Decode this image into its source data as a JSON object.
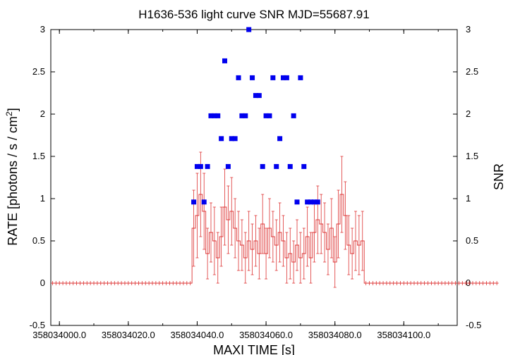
{
  "chart_data": {
    "type": "scatter",
    "title": "H1636-536 light curve  SNR MJD=55687.91",
    "xlabel": "MAXI TIME [s]",
    "ylabel_left": "RATE [photons / s / cm",
    "ylabel_left_sup": "2",
    "ylabel_left_end": "]",
    "ylabel_right": "SNR",
    "xlim": [
      358033997.5,
      358034115.5
    ],
    "ylim": [
      -0.5,
      3.0
    ],
    "x_ticks": [
      358034000.0,
      358034020.0,
      358034040.0,
      358034060.0,
      358034080.0,
      358034100.0
    ],
    "x_tick_labels": [
      "358034000.0",
      "358034020.0",
      "358034040.0",
      "358034060.0",
      "358034080.0",
      "358034100.0"
    ],
    "y_ticks": [
      -0.5,
      0,
      0.5,
      1,
      1.5,
      2,
      2.5,
      3
    ],
    "y_tick_labels": [
      "-0.5",
      "0",
      "0.5",
      "1",
      "1.5",
      "2",
      "2.5",
      "3"
    ],
    "series": [
      {
        "kind": "errorbar-step",
        "color": "#dd3333",
        "x_start": 358033998.0,
        "x_step": 1.0,
        "values": [
          0,
          0,
          0,
          0,
          0,
          0,
          0,
          0,
          0,
          0,
          0,
          0,
          0,
          0,
          0,
          0,
          0,
          0,
          0,
          0,
          0,
          0,
          0,
          0,
          0,
          0,
          0,
          0,
          0,
          0,
          0,
          0,
          0,
          0,
          0,
          0,
          0,
          0,
          0,
          0,
          0,
          0.65,
          0.8,
          1.05,
          0.85,
          0.35,
          0.6,
          0.5,
          0.3,
          0.55,
          0.9,
          0.75,
          0.85,
          0.65,
          0.5,
          0.45,
          0.3,
          0.5,
          0.4,
          0.5,
          0.35,
          0.7,
          0.35,
          0.65,
          0.55,
          0.45,
          0.6,
          0.5,
          0.3,
          0.35,
          0.25,
          0.45,
          0.3,
          0.35,
          0.55,
          0.3,
          0.6,
          0.75,
          0.7,
          0.6,
          0.4,
          0.65,
          0.25,
          0.7,
          1.05,
          0.8,
          0.45,
          0.35,
          0.5,
          0.45,
          0.5,
          0,
          0,
          0,
          0,
          0,
          0,
          0,
          0,
          0,
          0,
          0,
          0,
          0,
          0,
          0,
          0,
          0,
          0,
          0,
          0,
          0,
          0,
          0,
          0,
          0,
          0,
          0,
          0,
          0,
          0,
          0,
          0,
          0,
          0,
          0,
          0,
          0,
          0,
          0
        ],
        "errors": [
          0,
          0,
          0,
          0,
          0,
          0,
          0,
          0,
          0,
          0,
          0,
          0,
          0,
          0,
          0,
          0,
          0,
          0,
          0,
          0,
          0,
          0,
          0,
          0,
          0,
          0,
          0,
          0,
          0,
          0,
          0,
          0,
          0,
          0,
          0,
          0,
          0,
          0,
          0,
          0,
          0,
          0.45,
          0.5,
          0.5,
          0.45,
          0.3,
          0.35,
          0.4,
          0.3,
          0.35,
          0.45,
          0.4,
          0.4,
          0.35,
          0.35,
          0.3,
          0.3,
          0.35,
          0.3,
          0.3,
          0.3,
          0.35,
          0.3,
          0.35,
          0.3,
          0.3,
          0.35,
          0.3,
          0.3,
          0.3,
          0.25,
          0.3,
          0.3,
          0.3,
          0.35,
          0.3,
          0.35,
          0.4,
          0.35,
          0.35,
          0.3,
          0.35,
          0.3,
          0.4,
          0.45,
          0.4,
          0.35,
          0.3,
          0.35,
          0.35,
          0.35,
          0,
          0,
          0,
          0,
          0,
          0,
          0,
          0,
          0,
          0,
          0,
          0,
          0,
          0,
          0,
          0,
          0,
          0,
          0,
          0,
          0,
          0,
          0,
          0,
          0,
          0,
          0,
          0,
          0,
          0,
          0,
          0,
          0,
          0,
          0,
          0,
          0,
          0,
          0
        ]
      },
      {
        "kind": "points",
        "color": "#0000ee",
        "points": [
          [
            358034039.0,
            0.96
          ],
          [
            358034040.0,
            1.38
          ],
          [
            358034041.0,
            1.38
          ],
          [
            358034042.0,
            0.96
          ],
          [
            358034043.0,
            1.38
          ],
          [
            358034044.0,
            1.98
          ],
          [
            358034045.0,
            1.98
          ],
          [
            358034046.0,
            1.98
          ],
          [
            358034047.0,
            1.71
          ],
          [
            358034048.0,
            2.63
          ],
          [
            358034049.0,
            1.38
          ],
          [
            358034050.0,
            1.71
          ],
          [
            358034051.0,
            1.71
          ],
          [
            358034052.0,
            2.43
          ],
          [
            358034053.0,
            1.98
          ],
          [
            358034054.0,
            1.98
          ],
          [
            358034055.0,
            3.0
          ],
          [
            358034056.0,
            2.43
          ],
          [
            358034057.0,
            2.22
          ],
          [
            358034058.0,
            2.22
          ],
          [
            358034059.0,
            1.38
          ],
          [
            358034060.0,
            1.98
          ],
          [
            358034061.0,
            1.98
          ],
          [
            358034062.0,
            2.43
          ],
          [
            358034063.0,
            1.38
          ],
          [
            358034064.0,
            1.71
          ],
          [
            358034065.0,
            2.43
          ],
          [
            358034066.0,
            2.43
          ],
          [
            358034067.0,
            1.38
          ],
          [
            358034068.0,
            1.98
          ],
          [
            358034069.0,
            0.96
          ],
          [
            358034070.0,
            2.43
          ],
          [
            358034071.0,
            1.38
          ],
          [
            358034072.0,
            0.96
          ],
          [
            358034073.0,
            0.96
          ],
          [
            358034074.0,
            0.96
          ],
          [
            358034075.0,
            0.96
          ]
        ]
      }
    ],
    "grid": false,
    "legend": "none"
  }
}
